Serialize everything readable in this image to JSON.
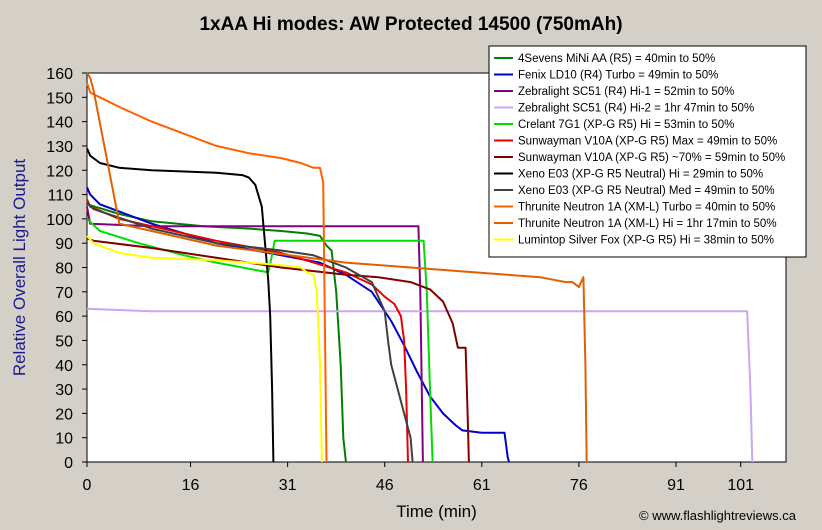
{
  "chart_data": {
    "type": "line",
    "title": "1xAA Hi modes: AW Protected 14500 (750mAh)",
    "xlabel": "Time (min)",
    "ylabel": "Relative Overall Light Output",
    "credit": "© www.flashlightreviews.ca",
    "xlim": [
      0,
      108
    ],
    "ylim": [
      0,
      160
    ],
    "xticks": [
      0,
      16,
      31,
      46,
      61,
      76,
      91,
      101
    ],
    "yticks": [
      0,
      10,
      20,
      30,
      40,
      50,
      60,
      70,
      80,
      90,
      100,
      110,
      120,
      130,
      140,
      150,
      160
    ],
    "grid": false,
    "legend_position": "top-right",
    "series": [
      {
        "name": "4Sevens MiNi AA (R5) = 40min to 50%",
        "color": "#008000",
        "points": [
          [
            0,
            106
          ],
          [
            5,
            102
          ],
          [
            10,
            99
          ],
          [
            18,
            97
          ],
          [
            25,
            96
          ],
          [
            30,
            95
          ],
          [
            34,
            94
          ],
          [
            36,
            93
          ],
          [
            37,
            89
          ],
          [
            37.8,
            87
          ],
          [
            38.5,
            70
          ],
          [
            39.2,
            40
          ],
          [
            39.6,
            10
          ],
          [
            40,
            0
          ]
        ]
      },
      {
        "name": "Fenix LD10 (R4) Turbo = 49min to 50%",
        "color": "#0000cc",
        "points": [
          [
            0,
            113
          ],
          [
            0.5,
            110
          ],
          [
            2,
            106
          ],
          [
            5,
            103
          ],
          [
            10,
            98
          ],
          [
            20,
            90
          ],
          [
            30,
            85
          ],
          [
            36,
            82
          ],
          [
            40,
            77
          ],
          [
            44,
            70
          ],
          [
            47,
            58
          ],
          [
            49,
            48
          ],
          [
            51,
            37
          ],
          [
            53,
            27
          ],
          [
            55,
            20
          ],
          [
            57,
            15
          ],
          [
            58,
            13
          ],
          [
            61,
            12
          ],
          [
            64.5,
            12
          ],
          [
            65,
            2
          ],
          [
            65.2,
            0
          ]
        ]
      },
      {
        "name": "Zebralight SC51 (R4) Hi-1 = 52min to 50%",
        "color": "#800080",
        "points": [
          [
            0,
            105
          ],
          [
            0.5,
            98
          ],
          [
            10,
            97
          ],
          [
            30,
            97
          ],
          [
            45,
            97
          ],
          [
            51.2,
            97
          ],
          [
            51.5,
            70
          ],
          [
            51.9,
            0
          ]
        ]
      },
      {
        "name": "Zebralight SC51 (R4) Hi-2 = 1hr 47min to 50%",
        "color": "#c8a8f0",
        "points": [
          [
            0,
            63
          ],
          [
            10,
            62
          ],
          [
            40,
            62
          ],
          [
            80,
            62
          ],
          [
            100,
            62
          ],
          [
            102,
            62
          ],
          [
            102.5,
            30
          ],
          [
            102.8,
            0
          ]
        ]
      },
      {
        "name": "Crelant 7G1 (XP-G R5) Hi = 53min to 50%",
        "color": "#00dd00",
        "points": [
          [
            0,
            100
          ],
          [
            2,
            95
          ],
          [
            8,
            90
          ],
          [
            15,
            85
          ],
          [
            20,
            82
          ],
          [
            28,
            78
          ],
          [
            28.5,
            84
          ],
          [
            29,
            91
          ],
          [
            34,
            91
          ],
          [
            40,
            91
          ],
          [
            45,
            91
          ],
          [
            52,
            91
          ],
          [
            52.5,
            70
          ],
          [
            53,
            30
          ],
          [
            53.4,
            0
          ]
        ]
      },
      {
        "name": "Sunwayman V10A (XP-G R5) Max = 49min to 50%",
        "color": "#ee0000",
        "points": [
          [
            0,
            108
          ],
          [
            0.5,
            105
          ],
          [
            5,
            100
          ],
          [
            10,
            97
          ],
          [
            20,
            91
          ],
          [
            30,
            86
          ],
          [
            35,
            82
          ],
          [
            40,
            78
          ],
          [
            44,
            73
          ],
          [
            46,
            68
          ],
          [
            47.5,
            65
          ],
          [
            48.5,
            60
          ],
          [
            49,
            50
          ],
          [
            49.3,
            30
          ],
          [
            49.6,
            0
          ]
        ]
      },
      {
        "name": "Sunwayman V10A (XP-G R5) ~70% = 59min to 50%",
        "color": "#800000",
        "points": [
          [
            0,
            92
          ],
          [
            1,
            91
          ],
          [
            10,
            88
          ],
          [
            20,
            84
          ],
          [
            30,
            80
          ],
          [
            40,
            77
          ],
          [
            45,
            76
          ],
          [
            50,
            74
          ],
          [
            53,
            71
          ],
          [
            55,
            66
          ],
          [
            56.5,
            57
          ],
          [
            57.3,
            47
          ],
          [
            58.5,
            47
          ],
          [
            58.8,
            20
          ],
          [
            59,
            0
          ]
        ]
      },
      {
        "name": "Xeno E03 (XP-G R5 Neutral) Hi = 29min to 50%",
        "color": "#000000",
        "points": [
          [
            0,
            129
          ],
          [
            0.5,
            126
          ],
          [
            2,
            123
          ],
          [
            5,
            121
          ],
          [
            10,
            120
          ],
          [
            15,
            119.5
          ],
          [
            20,
            119
          ],
          [
            24,
            118
          ],
          [
            25,
            117
          ],
          [
            26,
            114
          ],
          [
            27,
            105
          ],
          [
            27.5,
            90
          ],
          [
            28,
            75
          ],
          [
            28.3,
            60
          ],
          [
            28.6,
            30
          ],
          [
            28.8,
            0
          ]
        ]
      },
      {
        "name": "Xeno E03 (XP-G R5 Neutral) Med = 49min to 50%",
        "color": "#404040",
        "points": [
          [
            0,
            107
          ],
          [
            1,
            104
          ],
          [
            10,
            96
          ],
          [
            20,
            90
          ],
          [
            30,
            87
          ],
          [
            35,
            85
          ],
          [
            38,
            82
          ],
          [
            40,
            80
          ],
          [
            44,
            74
          ],
          [
            46,
            62
          ],
          [
            46.5,
            50
          ],
          [
            47,
            40
          ],
          [
            48,
            30
          ],
          [
            49,
            20
          ],
          [
            50,
            10
          ],
          [
            50.3,
            0
          ]
        ]
      },
      {
        "name": "Thrunite Neutron 1A (XM-L) Turbo = 40min to 50%",
        "color": "#ff6000",
        "points": [
          [
            0,
            156
          ],
          [
            0.5,
            152
          ],
          [
            2,
            150
          ],
          [
            5,
            146
          ],
          [
            10,
            140
          ],
          [
            15,
            135
          ],
          [
            20,
            130
          ],
          [
            25,
            127
          ],
          [
            30,
            125
          ],
          [
            33,
            123
          ],
          [
            35,
            121
          ],
          [
            36,
            121
          ],
          [
            36.5,
            115
          ],
          [
            37,
            0
          ]
        ]
      },
      {
        "name": "Thrunite Neutron 1A (XM-L) Hi = 1hr 17min to 50%",
        "color": "#e06000",
        "points": [
          [
            0,
            160
          ],
          [
            0.5,
            158
          ],
          [
            1,
            153
          ],
          [
            5,
            98
          ],
          [
            20,
            89
          ],
          [
            40,
            82
          ],
          [
            50,
            80
          ],
          [
            60,
            78
          ],
          [
            70,
            76
          ],
          [
            72,
            75
          ],
          [
            74,
            74
          ],
          [
            75,
            74
          ],
          [
            76,
            72
          ],
          [
            76.7,
            76
          ],
          [
            77,
            40
          ],
          [
            77.2,
            0
          ]
        ]
      },
      {
        "name": "Lumintop Silver Fox (XP-G R5) Hi = 38min to 50%",
        "color": "#ffff00",
        "points": [
          [
            0,
            93
          ],
          [
            1,
            90
          ],
          [
            5,
            86
          ],
          [
            10,
            84
          ],
          [
            20,
            83
          ],
          [
            30,
            81
          ],
          [
            33,
            80
          ],
          [
            34,
            78
          ],
          [
            35,
            77
          ],
          [
            35.5,
            70
          ],
          [
            36,
            40
          ],
          [
            36.3,
            0
          ]
        ]
      }
    ]
  }
}
